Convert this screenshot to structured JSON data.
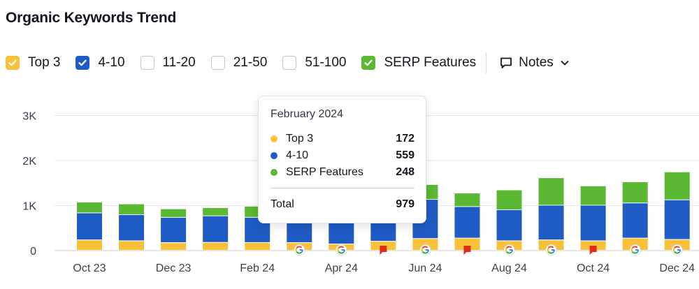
{
  "title": "Organic Keywords Trend",
  "filters": [
    {
      "label": "Top 3",
      "checked": true,
      "color": "#f8c13a"
    },
    {
      "label": "4-10",
      "checked": true,
      "color": "#1f5bc4"
    },
    {
      "label": "11-20",
      "checked": false,
      "color": ""
    },
    {
      "label": "21-50",
      "checked": false,
      "color": ""
    },
    {
      "label": "51-100",
      "checked": false,
      "color": ""
    },
    {
      "label": "SERP Features",
      "checked": true,
      "color": "#5bb832"
    }
  ],
  "notes": {
    "label": "Notes",
    "icon": "comment-icon",
    "chevron": "chevron-down-icon"
  },
  "tooltip": {
    "date": "February 2024",
    "rows": [
      {
        "name": "Top 3",
        "value": "172",
        "color": "#f8c13a"
      },
      {
        "name": "4-10",
        "value": "559",
        "color": "#1f5bc4"
      },
      {
        "name": "SERP Features",
        "value": "248",
        "color": "#5bb832"
      }
    ],
    "total_label": "Total",
    "total_value": "979"
  },
  "chart_data": {
    "type": "bar",
    "stacked": true,
    "y_ticks": [
      "0",
      "1K",
      "2K",
      "3K"
    ],
    "ylim": [
      0,
      3000
    ],
    "x_tick_labels": [
      "Oct 23",
      "Dec 23",
      "Feb 24",
      "Apr 24",
      "Jun 24",
      "Aug 24",
      "Oct 24",
      "Dec 24"
    ],
    "categories": [
      "Oct 2023",
      "Nov 2023",
      "Dec 2023",
      "Jan 2024",
      "Feb 2024",
      "Mar 2024",
      "Apr 2024",
      "May 2024",
      "Jun 2024",
      "Jul 2024",
      "Aug 2024",
      "Sep 2024",
      "Oct 2024",
      "Nov 2024",
      "Dec 2024"
    ],
    "series": [
      {
        "name": "Top 3",
        "color": "#f8c13a",
        "values": [
          230,
          210,
          170,
          175,
          172,
          170,
          140,
          200,
          260,
          270,
          210,
          230,
          210,
          270,
          240
        ]
      },
      {
        "name": "4-10",
        "color": "#1f5bc4",
        "values": [
          600,
          580,
          560,
          590,
          559,
          600,
          620,
          700,
          870,
          700,
          690,
          770,
          790,
          780,
          880
        ]
      },
      {
        "name": "SERP Features",
        "color": "#5bb832",
        "values": [
          240,
          240,
          190,
          180,
          248,
          260,
          270,
          320,
          330,
          300,
          440,
          610,
          430,
          470,
          620
        ]
      }
    ],
    "markers": [
      "",
      "",
      "",
      "",
      "",
      "google",
      "google",
      "flag",
      "google",
      "flag",
      "google",
      "google",
      "flag",
      "google",
      "google"
    ],
    "grid": true,
    "legend": "top"
  }
}
